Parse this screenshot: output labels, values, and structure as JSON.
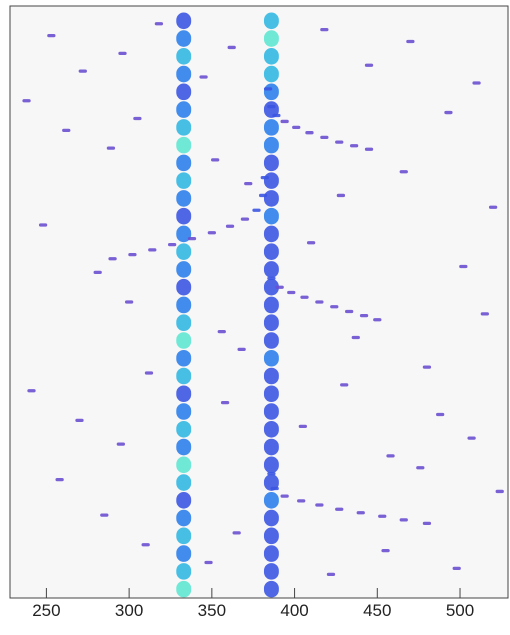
{
  "chart_data": {
    "type": "heatmap",
    "xlim": [
      228,
      529
    ],
    "ylim": [
      0,
      100
    ],
    "xticks": [
      250,
      300,
      350,
      400,
      450,
      500
    ],
    "colors": [
      "#6a4fd0",
      "#3c55e2",
      "#2c80ea",
      "#33b8e2",
      "#5fe6d2"
    ],
    "band_cell_size": [
      9,
      2.8
    ],
    "cell_size": [
      5,
      0.55
    ],
    "bands": {
      "x": [
        333,
        333,
        333,
        333,
        333,
        333,
        333,
        333,
        333,
        333,
        333,
        333,
        333,
        333,
        333,
        333,
        333,
        333,
        333,
        333,
        333,
        333,
        333,
        333,
        333,
        333,
        333,
        333,
        333,
        333,
        333,
        333,
        333,
        386,
        386,
        386,
        386,
        386,
        386,
        386,
        386,
        386,
        386,
        386,
        386,
        386,
        386,
        386,
        386,
        386,
        386,
        386,
        386,
        386,
        386,
        386,
        386,
        386,
        386,
        386,
        386,
        386,
        386,
        386,
        386,
        386
      ],
      "y": [
        1.5,
        4.5,
        7.5,
        10.5,
        13.5,
        16.5,
        19.5,
        22.5,
        25.5,
        28.5,
        31.5,
        34.5,
        37.5,
        40.5,
        43.5,
        46.5,
        49.5,
        52.5,
        55.5,
        58.5,
        61.5,
        64.5,
        67.5,
        70.5,
        73.5,
        76.5,
        79.5,
        82.5,
        85.5,
        88.5,
        91.5,
        94.5,
        97.5,
        1.5,
        4.5,
        7.5,
        10.5,
        13.5,
        16.5,
        19.5,
        22.5,
        25.5,
        28.5,
        31.5,
        34.5,
        37.5,
        40.5,
        43.5,
        46.5,
        49.5,
        52.5,
        55.5,
        58.5,
        61.5,
        64.5,
        67.5,
        70.5,
        73.5,
        76.5,
        79.5,
        82.5,
        85.5,
        88.5,
        91.5,
        94.5,
        97.5
      ],
      "z": [
        5,
        4,
        3,
        4,
        3,
        2,
        4,
        5,
        3,
        4,
        3,
        2,
        4,
        3,
        5,
        4,
        3,
        2,
        3,
        4,
        3,
        2,
        3,
        4,
        3,
        5,
        4,
        3,
        2,
        3,
        4,
        3,
        2,
        2,
        2,
        2,
        2,
        2,
        3,
        2,
        2,
        2,
        2,
        2,
        2,
        2,
        3,
        2,
        2,
        2,
        2,
        2,
        2,
        2,
        3,
        2,
        2,
        2,
        3,
        3,
        2,
        3,
        4,
        4,
        5,
        4
      ]
    },
    "cells": {
      "x": [
        384,
        386,
        389,
        394,
        401,
        409,
        418,
        427,
        436,
        445,
        382,
        381,
        377,
        370,
        361,
        350,
        338,
        326,
        314,
        302,
        290,
        386,
        391,
        398,
        406,
        415,
        424,
        433,
        442,
        450,
        386,
        388,
        394,
        404,
        415,
        427,
        440,
        453,
        466,
        480,
        253,
        272,
        296,
        318,
        345,
        362,
        418,
        445,
        470,
        510,
        238,
        262,
        289,
        305,
        352,
        372,
        428,
        466,
        493,
        520,
        248,
        281,
        300,
        356,
        368,
        410,
        437,
        480,
        502,
        515,
        241,
        270,
        295,
        312,
        358,
        405,
        430,
        458,
        488,
        507,
        258,
        285,
        310,
        348,
        365,
        422,
        455,
        476,
        498,
        524
      ],
      "y": [
        86,
        83,
        81.5,
        80.5,
        79.5,
        78.6,
        77.8,
        77,
        76.4,
        75.8,
        71,
        68,
        65.5,
        64,
        62.8,
        61.7,
        60.7,
        59.7,
        58.8,
        58,
        57.3,
        54,
        52.5,
        51.6,
        50.8,
        50,
        49.2,
        48.4,
        47.7,
        47,
        21,
        18.5,
        17.2,
        16.4,
        15.7,
        15,
        14.4,
        13.8,
        13.2,
        12.6,
        95,
        89,
        92,
        97,
        88,
        93,
        96,
        90,
        94,
        87,
        84,
        79,
        76,
        81,
        74,
        70,
        68,
        72,
        82,
        66,
        63,
        55,
        50,
        45,
        42,
        60,
        44,
        39,
        56,
        48,
        35,
        30,
        26,
        38,
        33,
        29,
        36,
        24,
        31,
        27,
        20,
        14,
        9,
        6,
        11,
        4,
        8,
        22,
        5,
        18
      ],
      "z": [
        2,
        2,
        2,
        1,
        1,
        1,
        1,
        1,
        1,
        1,
        2,
        2,
        2,
        1,
        1,
        1,
        1,
        1,
        1,
        1,
        1,
        2,
        1,
        1,
        1,
        1,
        1,
        1,
        1,
        1,
        2,
        2,
        1,
        1,
        1,
        1,
        1,
        1,
        1,
        1,
        1,
        1,
        1,
        1,
        1,
        1,
        1,
        1,
        1,
        1,
        1,
        1,
        1,
        1,
        1,
        1,
        1,
        1,
        1,
        1,
        1,
        1,
        1,
        1,
        1,
        1,
        1,
        1,
        1,
        1,
        1,
        1,
        1,
        1,
        1,
        1,
        1,
        1,
        1,
        1,
        1,
        1,
        1,
        1,
        1,
        1,
        1,
        1,
        1,
        1
      ]
    }
  }
}
